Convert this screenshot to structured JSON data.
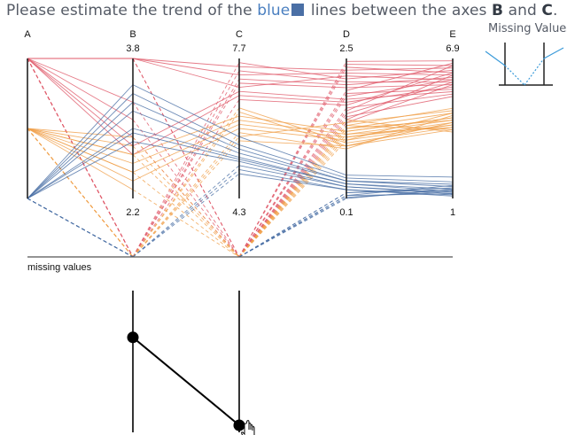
{
  "question": {
    "prefix": "Please estimate the trend of the",
    "color_word": "blue",
    "middle": "lines between the axes",
    "axis1": "B",
    "and": "and",
    "axis2": "C",
    "suffix": ".",
    "color_hex": "#4a6fa5"
  },
  "legend": {
    "title": "Missing Values"
  },
  "chart_data": {
    "type": "parallel_coordinates",
    "axes": [
      {
        "name": "A",
        "max": null,
        "min": null,
        "categories": [
          "top",
          "middle",
          "bottom"
        ]
      },
      {
        "name": "B",
        "max": "3.8",
        "min": "2.2"
      },
      {
        "name": "C",
        "max": "7.7",
        "min": "4.3"
      },
      {
        "name": "D",
        "max": "2.5",
        "min": "0.1"
      },
      {
        "name": "E",
        "max": "6.9",
        "min": "1"
      }
    ],
    "missing_values_label": "missing values",
    "series": [
      {
        "color": "#e05a6a",
        "category": "top",
        "B": [
          3.8,
          3.8,
          3.8,
          3.8,
          3.8,
          3.8,
          null,
          null,
          null,
          null,
          3.3,
          3.1,
          2.9,
          2.8,
          2.7,
          null,
          null,
          null,
          null,
          null,
          null,
          null
        ],
        "C": [
          null,
          null,
          null,
          7.5,
          7.3,
          7.0,
          7.6,
          7.4,
          7.2,
          7.1,
          null,
          null,
          null,
          6.9,
          6.8,
          6.7,
          null,
          null,
          null,
          null,
          null,
          null
        ],
        "D": [
          2.45,
          2.4,
          2.35,
          2.3,
          2.25,
          2.2,
          2.15,
          2.1,
          2.05,
          2.0,
          1.95,
          1.9,
          1.85,
          1.8,
          1.75,
          1.7,
          1.65,
          1.6,
          1.55,
          1.5,
          1.45,
          1.4
        ],
        "E": [
          6.8,
          6.6,
          6.3,
          6.5,
          6.2,
          6.0,
          6.4,
          5.9,
          6.1,
          5.8,
          6.7,
          5.6,
          6.0,
          5.5,
          5.7,
          6.3,
          5.4,
          6.6,
          5.9,
          5.3,
          6.2,
          5.8
        ]
      },
      {
        "color": "#f0a04b",
        "category": "middle",
        "B": [
          2.9,
          2.8,
          2.7,
          2.6,
          2.5,
          2.4,
          null,
          null,
          null,
          null,
          null,
          2.3,
          2.5,
          2.7,
          null,
          null,
          null,
          null
        ],
        "C": [
          null,
          null,
          6.3,
          6.2,
          6.1,
          6.0,
          6.5,
          6.4,
          5.9,
          5.8,
          null,
          null,
          null,
          null,
          5.7,
          null,
          null,
          null
        ],
        "D": [
          1.35,
          1.3,
          1.25,
          1.2,
          1.15,
          1.1,
          1.05,
          1.0,
          0.95,
          1.4,
          1.45,
          1.3,
          1.2,
          1.1,
          1.0,
          1.35,
          1.25,
          1.15
        ],
        "E": [
          4.8,
          4.6,
          4.4,
          4.3,
          4.2,
          4.1,
          4.0,
          3.9,
          4.5,
          4.7,
          3.8,
          4.3,
          4.0,
          4.6,
          4.2,
          3.9,
          4.4,
          4.1
        ]
      },
      {
        "color": "#4a6fa5",
        "category": "bottom",
        "B": [
          3.5,
          3.4,
          3.3,
          3.2,
          3.0,
          2.95,
          2.85,
          null,
          null,
          null,
          null,
          null,
          null,
          null,
          null,
          null
        ],
        "C": [
          5.8,
          5.6,
          5.5,
          5.4,
          5.3,
          5.25,
          5.2,
          5.1,
          5.0,
          4.9,
          null,
          null,
          null,
          null,
          null,
          null
        ],
        "D": [
          0.5,
          0.45,
          0.4,
          0.4,
          0.35,
          0.35,
          0.3,
          0.3,
          0.25,
          0.25,
          0.2,
          0.2,
          0.15,
          0.15,
          0.12,
          0.1
        ],
        "E": [
          1.9,
          1.7,
          1.6,
          1.5,
          1.4,
          1.3,
          1.25,
          1.2,
          1.15,
          1.1,
          1.35,
          1.45,
          1.55,
          1.2,
          1.3,
          1.4
        ]
      }
    ],
    "legend": {
      "title": "Missing Values"
    }
  },
  "answer_widget": {
    "left_value_fraction": 0.33,
    "right_value_fraction": 0.95
  }
}
